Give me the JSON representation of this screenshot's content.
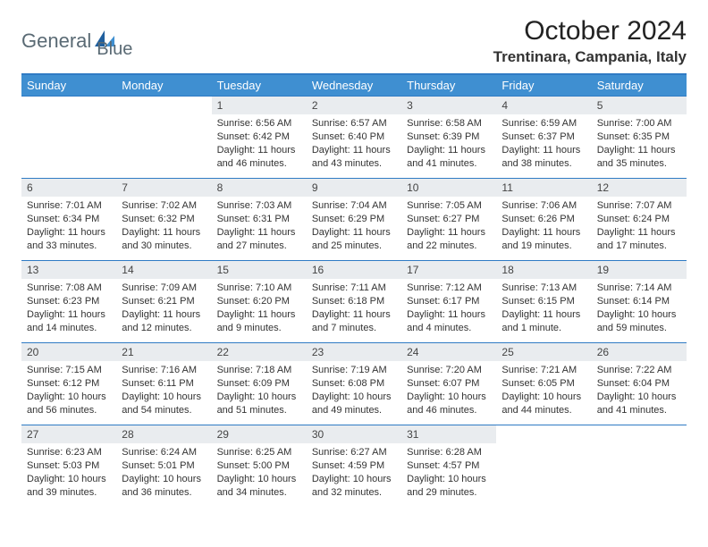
{
  "brand": {
    "name_part1": "General",
    "name_part2": "Blue"
  },
  "title": "October 2024",
  "location": "Trentinara, Campania, Italy",
  "colors": {
    "header_bg": "#3f8fd1",
    "header_border": "#2f7bc4",
    "daynum_bg": "#e9ecef",
    "text": "#333333",
    "logo_gray": "#5a6a74",
    "logo_blue": "#2f7bc4"
  },
  "fonts": {
    "title_size": 30,
    "location_size": 17,
    "header_size": 13,
    "daynum_size": 12,
    "info_size": 11
  },
  "day_headers": [
    "Sunday",
    "Monday",
    "Tuesday",
    "Wednesday",
    "Thursday",
    "Friday",
    "Saturday"
  ],
  "weeks": [
    [
      {
        "n": "",
        "sr": "",
        "ss": "",
        "dl": ""
      },
      {
        "n": "",
        "sr": "",
        "ss": "",
        "dl": ""
      },
      {
        "n": "1",
        "sr": "Sunrise: 6:56 AM",
        "ss": "Sunset: 6:42 PM",
        "dl": "Daylight: 11 hours and 46 minutes."
      },
      {
        "n": "2",
        "sr": "Sunrise: 6:57 AM",
        "ss": "Sunset: 6:40 PM",
        "dl": "Daylight: 11 hours and 43 minutes."
      },
      {
        "n": "3",
        "sr": "Sunrise: 6:58 AM",
        "ss": "Sunset: 6:39 PM",
        "dl": "Daylight: 11 hours and 41 minutes."
      },
      {
        "n": "4",
        "sr": "Sunrise: 6:59 AM",
        "ss": "Sunset: 6:37 PM",
        "dl": "Daylight: 11 hours and 38 minutes."
      },
      {
        "n": "5",
        "sr": "Sunrise: 7:00 AM",
        "ss": "Sunset: 6:35 PM",
        "dl": "Daylight: 11 hours and 35 minutes."
      }
    ],
    [
      {
        "n": "6",
        "sr": "Sunrise: 7:01 AM",
        "ss": "Sunset: 6:34 PM",
        "dl": "Daylight: 11 hours and 33 minutes."
      },
      {
        "n": "7",
        "sr": "Sunrise: 7:02 AM",
        "ss": "Sunset: 6:32 PM",
        "dl": "Daylight: 11 hours and 30 minutes."
      },
      {
        "n": "8",
        "sr": "Sunrise: 7:03 AM",
        "ss": "Sunset: 6:31 PM",
        "dl": "Daylight: 11 hours and 27 minutes."
      },
      {
        "n": "9",
        "sr": "Sunrise: 7:04 AM",
        "ss": "Sunset: 6:29 PM",
        "dl": "Daylight: 11 hours and 25 minutes."
      },
      {
        "n": "10",
        "sr": "Sunrise: 7:05 AM",
        "ss": "Sunset: 6:27 PM",
        "dl": "Daylight: 11 hours and 22 minutes."
      },
      {
        "n": "11",
        "sr": "Sunrise: 7:06 AM",
        "ss": "Sunset: 6:26 PM",
        "dl": "Daylight: 11 hours and 19 minutes."
      },
      {
        "n": "12",
        "sr": "Sunrise: 7:07 AM",
        "ss": "Sunset: 6:24 PM",
        "dl": "Daylight: 11 hours and 17 minutes."
      }
    ],
    [
      {
        "n": "13",
        "sr": "Sunrise: 7:08 AM",
        "ss": "Sunset: 6:23 PM",
        "dl": "Daylight: 11 hours and 14 minutes."
      },
      {
        "n": "14",
        "sr": "Sunrise: 7:09 AM",
        "ss": "Sunset: 6:21 PM",
        "dl": "Daylight: 11 hours and 12 minutes."
      },
      {
        "n": "15",
        "sr": "Sunrise: 7:10 AM",
        "ss": "Sunset: 6:20 PM",
        "dl": "Daylight: 11 hours and 9 minutes."
      },
      {
        "n": "16",
        "sr": "Sunrise: 7:11 AM",
        "ss": "Sunset: 6:18 PM",
        "dl": "Daylight: 11 hours and 7 minutes."
      },
      {
        "n": "17",
        "sr": "Sunrise: 7:12 AM",
        "ss": "Sunset: 6:17 PM",
        "dl": "Daylight: 11 hours and 4 minutes."
      },
      {
        "n": "18",
        "sr": "Sunrise: 7:13 AM",
        "ss": "Sunset: 6:15 PM",
        "dl": "Daylight: 11 hours and 1 minute."
      },
      {
        "n": "19",
        "sr": "Sunrise: 7:14 AM",
        "ss": "Sunset: 6:14 PM",
        "dl": "Daylight: 10 hours and 59 minutes."
      }
    ],
    [
      {
        "n": "20",
        "sr": "Sunrise: 7:15 AM",
        "ss": "Sunset: 6:12 PM",
        "dl": "Daylight: 10 hours and 56 minutes."
      },
      {
        "n": "21",
        "sr": "Sunrise: 7:16 AM",
        "ss": "Sunset: 6:11 PM",
        "dl": "Daylight: 10 hours and 54 minutes."
      },
      {
        "n": "22",
        "sr": "Sunrise: 7:18 AM",
        "ss": "Sunset: 6:09 PM",
        "dl": "Daylight: 10 hours and 51 minutes."
      },
      {
        "n": "23",
        "sr": "Sunrise: 7:19 AM",
        "ss": "Sunset: 6:08 PM",
        "dl": "Daylight: 10 hours and 49 minutes."
      },
      {
        "n": "24",
        "sr": "Sunrise: 7:20 AM",
        "ss": "Sunset: 6:07 PM",
        "dl": "Daylight: 10 hours and 46 minutes."
      },
      {
        "n": "25",
        "sr": "Sunrise: 7:21 AM",
        "ss": "Sunset: 6:05 PM",
        "dl": "Daylight: 10 hours and 44 minutes."
      },
      {
        "n": "26",
        "sr": "Sunrise: 7:22 AM",
        "ss": "Sunset: 6:04 PM",
        "dl": "Daylight: 10 hours and 41 minutes."
      }
    ],
    [
      {
        "n": "27",
        "sr": "Sunrise: 6:23 AM",
        "ss": "Sunset: 5:03 PM",
        "dl": "Daylight: 10 hours and 39 minutes."
      },
      {
        "n": "28",
        "sr": "Sunrise: 6:24 AM",
        "ss": "Sunset: 5:01 PM",
        "dl": "Daylight: 10 hours and 36 minutes."
      },
      {
        "n": "29",
        "sr": "Sunrise: 6:25 AM",
        "ss": "Sunset: 5:00 PM",
        "dl": "Daylight: 10 hours and 34 minutes."
      },
      {
        "n": "30",
        "sr": "Sunrise: 6:27 AM",
        "ss": "Sunset: 4:59 PM",
        "dl": "Daylight: 10 hours and 32 minutes."
      },
      {
        "n": "31",
        "sr": "Sunrise: 6:28 AM",
        "ss": "Sunset: 4:57 PM",
        "dl": "Daylight: 10 hours and 29 minutes."
      },
      {
        "n": "",
        "sr": "",
        "ss": "",
        "dl": ""
      },
      {
        "n": "",
        "sr": "",
        "ss": "",
        "dl": ""
      }
    ]
  ]
}
